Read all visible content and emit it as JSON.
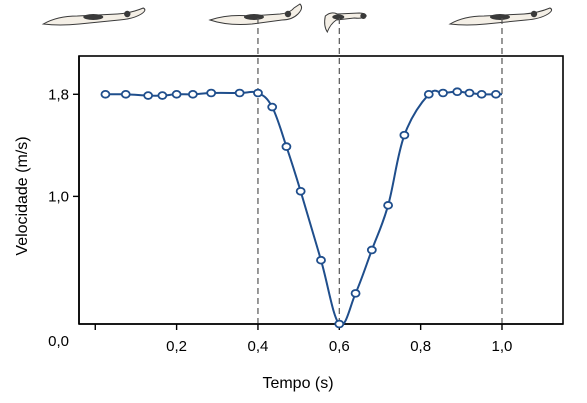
{
  "chart_data": {
    "type": "line",
    "xlabel": "Tempo (s)",
    "ylabel": "Velocidade (m/s)",
    "xlim": [
      -0.04,
      1.15
    ],
    "ylim": [
      0.0,
      2.1
    ],
    "x_ticks": [
      {
        "value": 0.0,
        "label": "0,0"
      },
      {
        "value": 0.2,
        "label": "0,2"
      },
      {
        "value": 0.4,
        "label": "0,4"
      },
      {
        "value": 0.6,
        "label": "0,6"
      },
      {
        "value": 0.8,
        "label": "0,8"
      },
      {
        "value": 1.0,
        "label": "1,0"
      }
    ],
    "y_ticks": [
      {
        "value": 1.0,
        "label": "1,0"
      },
      {
        "value": 1.8,
        "label": "1,8"
      }
    ],
    "reference_lines_x": [
      0.4,
      0.6,
      1.0
    ],
    "grid": false,
    "colors": {
      "series": "#1f4e8c",
      "marker_fill": "#ffffff",
      "reference": "#555555"
    },
    "series": [
      {
        "points": [
          {
            "x": 0.025,
            "y": 1.8
          },
          {
            "x": 0.075,
            "y": 1.8
          },
          {
            "x": 0.13,
            "y": 1.79
          },
          {
            "x": 0.165,
            "y": 1.79
          },
          {
            "x": 0.2,
            "y": 1.8
          },
          {
            "x": 0.24,
            "y": 1.8
          },
          {
            "x": 0.285,
            "y": 1.81
          },
          {
            "x": 0.355,
            "y": 1.81
          },
          {
            "x": 0.4,
            "y": 1.81
          },
          {
            "x": 0.435,
            "y": 1.7
          },
          {
            "x": 0.47,
            "y": 1.39
          },
          {
            "x": 0.505,
            "y": 1.04
          },
          {
            "x": 0.555,
            "y": 0.5
          },
          {
            "x": 0.6,
            "y": 0.0
          },
          {
            "x": 0.64,
            "y": 0.24
          },
          {
            "x": 0.68,
            "y": 0.58
          },
          {
            "x": 0.72,
            "y": 0.93
          },
          {
            "x": 0.76,
            "y": 1.48
          },
          {
            "x": 0.82,
            "y": 1.8
          },
          {
            "x": 0.855,
            "y": 1.81
          },
          {
            "x": 0.89,
            "y": 1.82
          },
          {
            "x": 0.92,
            "y": 1.81
          },
          {
            "x": 0.95,
            "y": 1.8
          },
          {
            "x": 0.985,
            "y": 1.8
          },
          {
            "x": 1.0,
            "y": 1.8
          }
        ],
        "marker_points": [
          {
            "x": 0.025,
            "y": 1.8
          },
          {
            "x": 0.075,
            "y": 1.8
          },
          {
            "x": 0.13,
            "y": 1.79
          },
          {
            "x": 0.165,
            "y": 1.79
          },
          {
            "x": 0.2,
            "y": 1.8
          },
          {
            "x": 0.24,
            "y": 1.8
          },
          {
            "x": 0.285,
            "y": 1.81
          },
          {
            "x": 0.355,
            "y": 1.81
          },
          {
            "x": 0.4,
            "y": 1.81
          },
          {
            "x": 0.435,
            "y": 1.7
          },
          {
            "x": 0.47,
            "y": 1.39
          },
          {
            "x": 0.505,
            "y": 1.04
          },
          {
            "x": 0.555,
            "y": 0.5
          },
          {
            "x": 0.6,
            "y": 0.0
          },
          {
            "x": 0.64,
            "y": 0.24
          },
          {
            "x": 0.68,
            "y": 0.58
          },
          {
            "x": 0.72,
            "y": 0.93
          },
          {
            "x": 0.76,
            "y": 1.48
          },
          {
            "x": 0.82,
            "y": 1.8
          },
          {
            "x": 0.855,
            "y": 1.81
          },
          {
            "x": 0.89,
            "y": 1.82
          },
          {
            "x": 0.92,
            "y": 1.81
          },
          {
            "x": 0.95,
            "y": 1.8
          },
          {
            "x": 0.985,
            "y": 1.8
          }
        ]
      }
    ]
  },
  "swimmer_illustrations": [
    {
      "x": 0.0,
      "pose": "glide-stroke-icon"
    },
    {
      "x": 0.4,
      "pose": "arm-recovery-icon"
    },
    {
      "x": 0.6,
      "pose": "leg-kick-icon"
    },
    {
      "x": 1.0,
      "pose": "glide-stroke-icon"
    }
  ]
}
